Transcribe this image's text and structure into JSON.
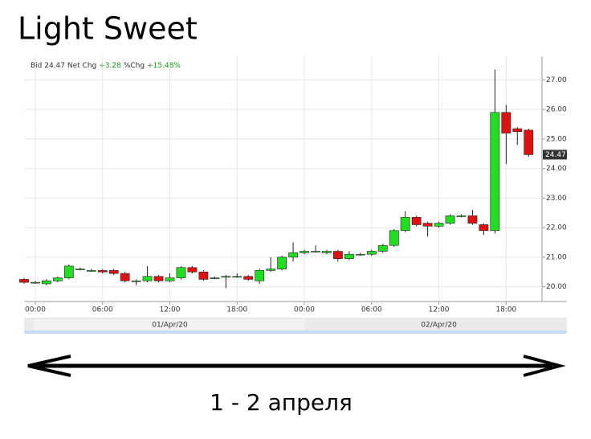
{
  "title": "Light Sweet",
  "caption": "1 - 2 апреля",
  "chart_data": {
    "type": "candlestick",
    "header": [
      {
        "text": "Bid 24.47 Net Chg",
        "color": "#333333"
      },
      {
        "text": "+3.28",
        "color": "#119911"
      },
      {
        "text": "%Chg",
        "color": "#333333"
      },
      {
        "text": "+15.48%",
        "color": "#119911"
      }
    ],
    "last_price": 24.47,
    "up_color": "#22dd22",
    "down_color": "#dd1111",
    "grid": true,
    "x": [
      -1,
      0,
      1,
      2,
      3,
      4,
      5,
      6,
      7,
      8,
      9,
      10,
      11,
      12,
      13,
      14,
      15,
      16,
      17,
      18,
      19,
      20,
      21,
      22,
      23,
      24,
      25,
      26,
      27,
      28,
      29,
      30,
      31,
      32,
      33,
      34,
      35,
      36,
      37,
      38,
      39,
      40,
      41,
      42,
      43,
      44
    ],
    "open": [
      20.25,
      20.15,
      20.1,
      20.2,
      20.3,
      20.6,
      20.55,
      20.55,
      20.55,
      20.45,
      20.2,
      20.2,
      20.35,
      20.2,
      20.3,
      20.65,
      20.5,
      20.3,
      20.35,
      20.35,
      20.35,
      20.2,
      20.55,
      20.6,
      21.0,
      21.15,
      21.2,
      21.15,
      21.2,
      20.95,
      21.1,
      21.1,
      21.2,
      21.4,
      21.9,
      22.35,
      22.15,
      22.05,
      22.15,
      22.4,
      22.4,
      22.1,
      21.9,
      25.9,
      25.35,
      25.3
    ],
    "high": [
      20.3,
      20.2,
      20.25,
      20.35,
      20.75,
      20.65,
      20.6,
      20.6,
      20.6,
      20.5,
      20.25,
      20.7,
      20.4,
      20.45,
      20.7,
      20.7,
      20.55,
      20.35,
      20.4,
      20.45,
      20.4,
      20.6,
      21.0,
      21.05,
      21.5,
      21.25,
      21.4,
      21.25,
      21.25,
      21.2,
      21.15,
      21.25,
      21.45,
      21.95,
      22.55,
      22.4,
      22.2,
      22.2,
      22.45,
      22.45,
      22.6,
      22.15,
      27.35,
      26.15,
      25.4,
      25.35
    ],
    "low": [
      20.1,
      20.1,
      20.05,
      20.15,
      20.25,
      20.55,
      20.5,
      20.45,
      20.4,
      20.15,
      20.05,
      20.15,
      20.15,
      20.15,
      20.25,
      20.45,
      20.2,
      20.25,
      19.95,
      20.3,
      20.2,
      20.1,
      20.5,
      20.55,
      20.85,
      21.1,
      21.15,
      21.1,
      20.85,
      20.9,
      21.05,
      21.05,
      21.15,
      21.35,
      21.85,
      22.05,
      21.7,
      22.0,
      22.1,
      22.35,
      22.1,
      21.75,
      21.8,
      24.15,
      24.8,
      24.4
    ],
    "close": [
      20.15,
      20.15,
      20.2,
      20.3,
      20.7,
      20.6,
      20.55,
      20.5,
      20.45,
      20.2,
      20.2,
      20.35,
      20.2,
      20.3,
      20.65,
      20.5,
      20.25,
      20.3,
      20.35,
      20.35,
      20.25,
      20.55,
      20.6,
      21.0,
      21.15,
      21.2,
      21.2,
      21.2,
      20.95,
      21.1,
      21.1,
      21.2,
      21.4,
      21.9,
      22.35,
      22.1,
      22.05,
      22.15,
      22.4,
      22.4,
      22.15,
      21.9,
      25.9,
      25.2,
      25.25,
      24.47
    ],
    "xlim": [
      -1,
      45.2
    ],
    "xticks": [
      {
        "value": 0,
        "label": "00:00"
      },
      {
        "value": 6,
        "label": "06:00"
      },
      {
        "value": 12,
        "label": "12:00"
      },
      {
        "value": 18,
        "label": "18:00"
      },
      {
        "value": 24,
        "label": "00:00"
      },
      {
        "value": 30,
        "label": "06:00"
      },
      {
        "value": 36,
        "label": "12:00"
      },
      {
        "value": 42,
        "label": "18:00"
      }
    ],
    "date_labels": [
      {
        "value": 12,
        "label": "01/Apr/20"
      },
      {
        "value": 36,
        "label": "02/Apr/20"
      }
    ],
    "ylim": [
      19.5,
      27.8
    ],
    "yticks": [
      {
        "value": 20,
        "label": "20.00"
      },
      {
        "value": 21,
        "label": "21.00"
      },
      {
        "value": 22,
        "label": "22.00"
      },
      {
        "value": 23,
        "label": "23.00"
      },
      {
        "value": 24,
        "label": "24.00"
      },
      {
        "value": 25,
        "label": "25.00"
      },
      {
        "value": 26,
        "label": "26.00"
      },
      {
        "value": 27,
        "label": "27.00"
      }
    ]
  }
}
